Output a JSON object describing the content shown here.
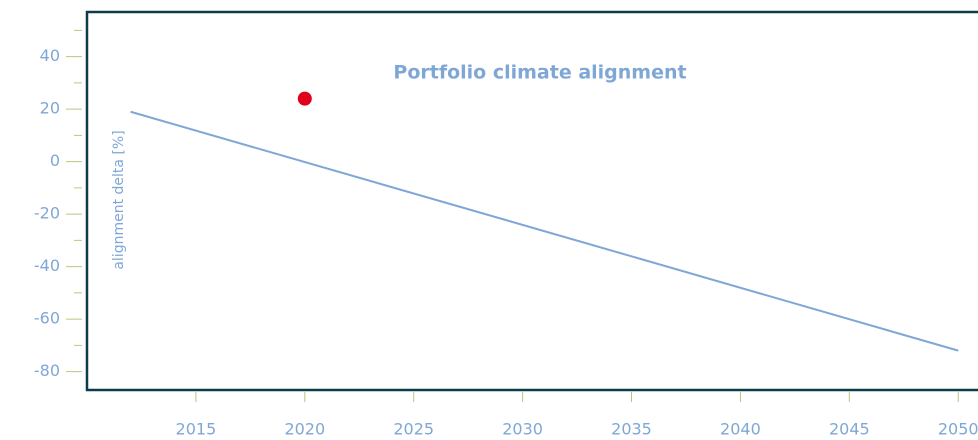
{
  "chart_data": {
    "type": "line",
    "title": "Portfolio climate alignment",
    "y_label": "alignment delta [%]",
    "xlim": [
      2010,
      2051
    ],
    "ylim": [
      -87,
      57
    ],
    "xticks": [
      2015,
      2020,
      2025,
      2030,
      2035,
      2040,
      2045,
      2050
    ],
    "yticks": [
      -80,
      -60,
      -40,
      -20,
      0,
      20,
      40
    ],
    "yminorticks": [
      -70,
      -50,
      -30,
      -10,
      10,
      30,
      50
    ],
    "series": [
      {
        "type": "line",
        "color": "#7fa7d6",
        "x": [
          2012,
          2050
        ],
        "values": [
          19,
          -72
        ]
      },
      {
        "type": "scatter",
        "color": "#e0001b",
        "x": [
          2020
        ],
        "values": [
          24
        ]
      }
    ]
  }
}
